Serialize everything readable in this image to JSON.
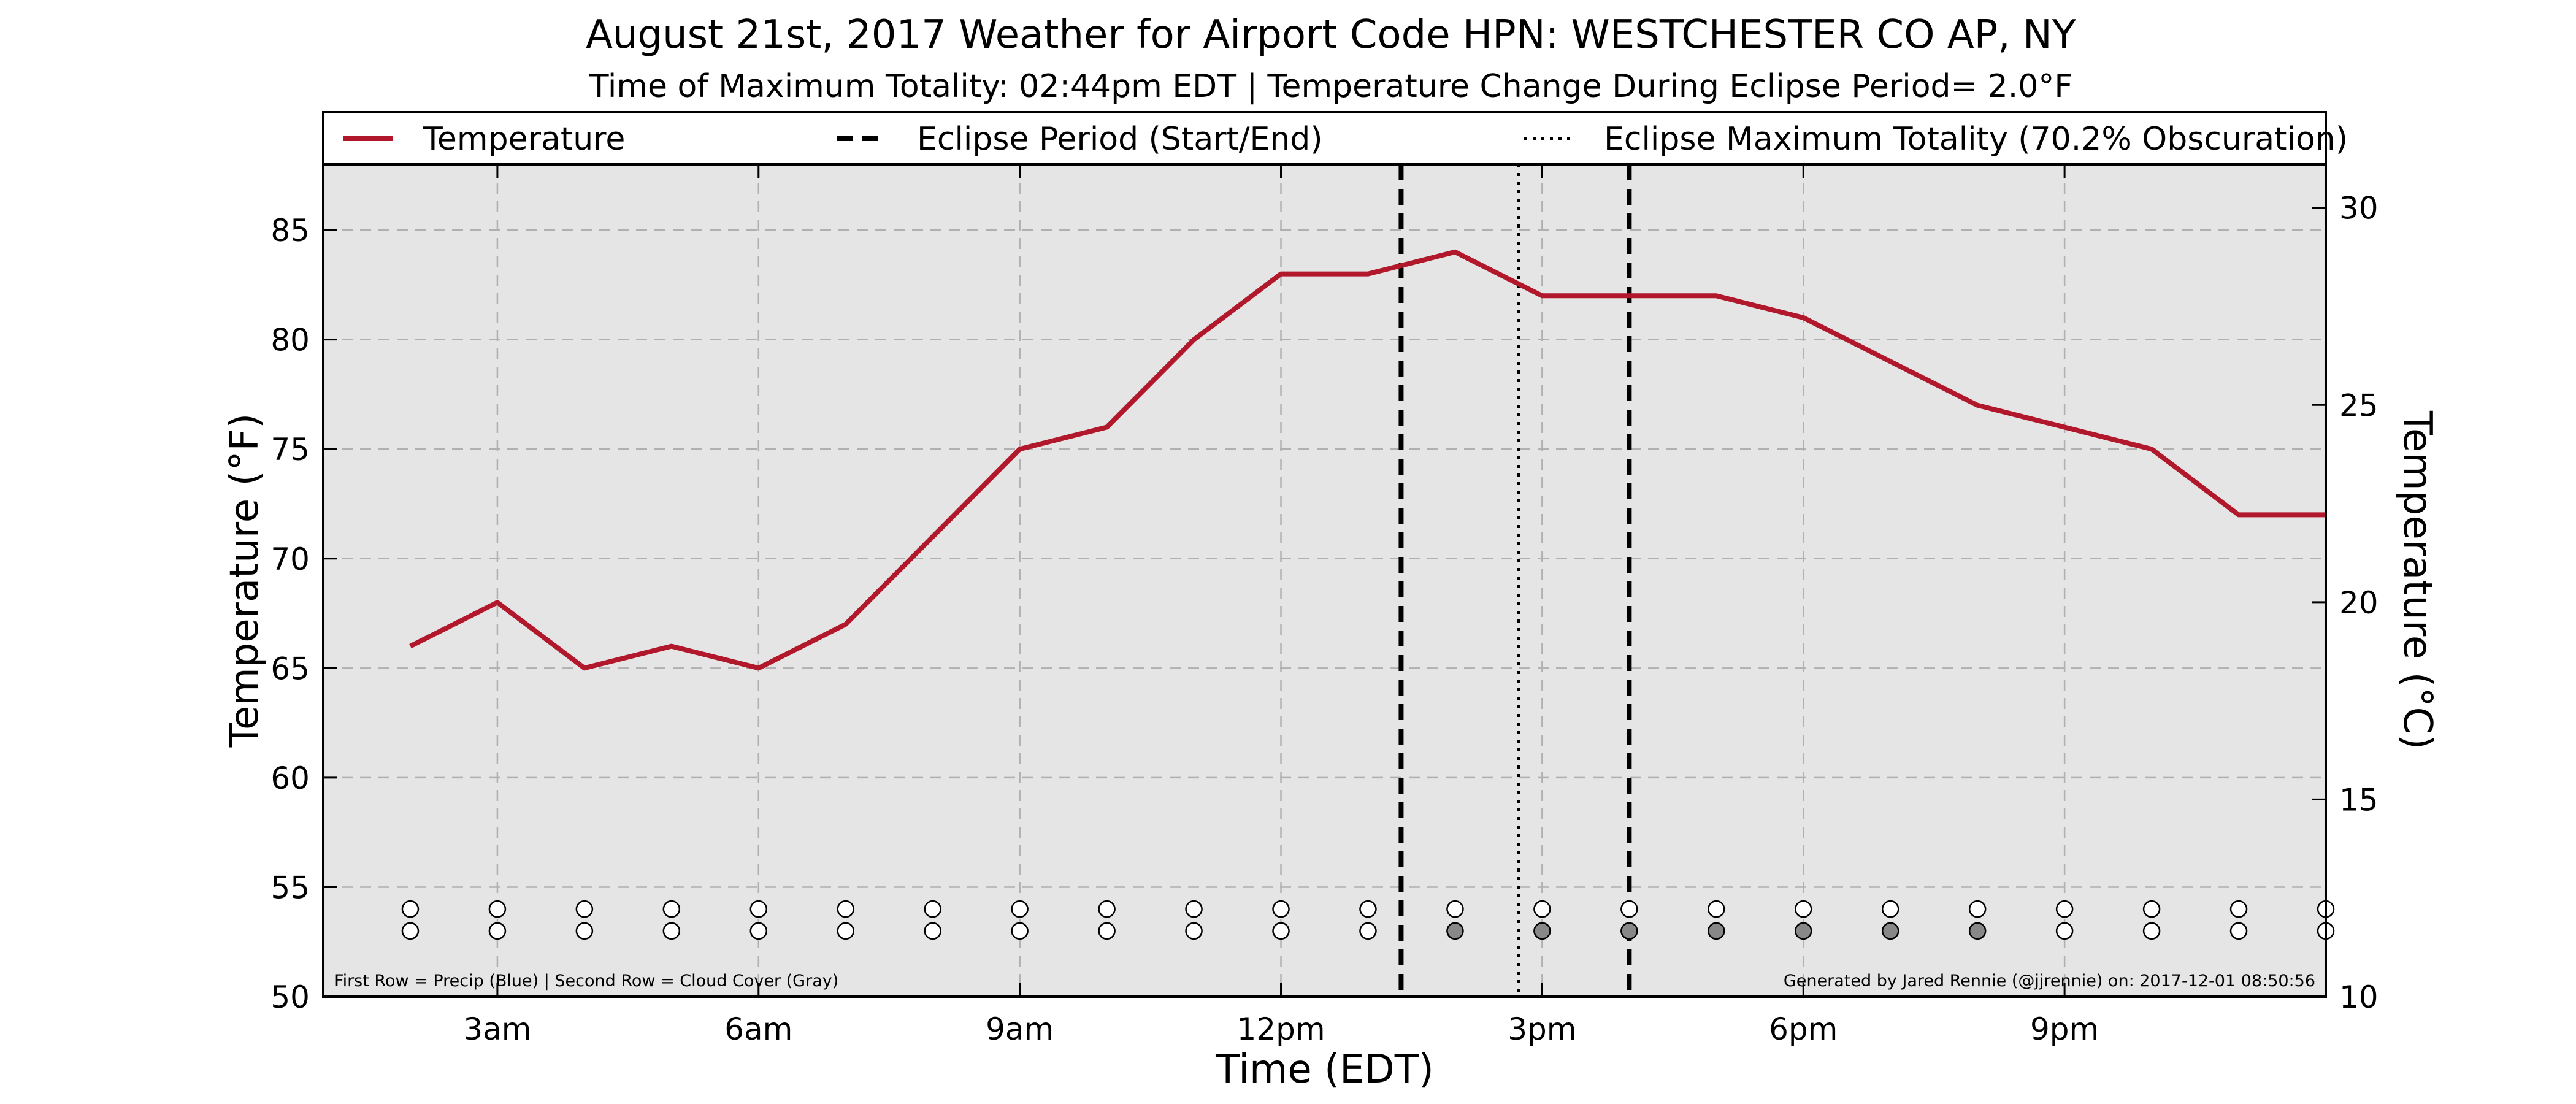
{
  "chart_data": {
    "type": "line",
    "title": "August 21st, 2017 Weather for Airport Code HPN: WESTCHESTER CO AP, NY",
    "subtitle": "Time of Maximum Totality: 02:44pm EDT | Temperature Change During Eclipse Period= 2.0°F",
    "xlabel": "Time (EDT)",
    "ylabel": "Temperature (°F)",
    "ylabel_right": "Temperature (°C)",
    "xlim": [
      1,
      24
    ],
    "ylim": [
      50,
      88
    ],
    "ylim_right": [
      10,
      31.1
    ],
    "grid": true,
    "x_ticks": [
      {
        "x": 3,
        "label": "3am"
      },
      {
        "x": 6,
        "label": "6am"
      },
      {
        "x": 9,
        "label": "9am"
      },
      {
        "x": 12,
        "label": "12pm"
      },
      {
        "x": 15,
        "label": "3pm"
      },
      {
        "x": 18,
        "label": "6pm"
      },
      {
        "x": 21,
        "label": "9pm"
      }
    ],
    "y_ticks": [
      50,
      55,
      60,
      65,
      70,
      75,
      80,
      85
    ],
    "y_ticks_right": [
      10,
      15,
      20,
      25,
      30
    ],
    "legend": {
      "placement": "top",
      "entries": [
        {
          "label": "Temperature",
          "style": "solid",
          "color": "#b2182b"
        },
        {
          "label": "Eclipse Period (Start/End)",
          "style": "dashed",
          "color": "#000000"
        },
        {
          "label": "Eclipse Maximum Totality (70.2% Obscuration)",
          "style": "dotted",
          "color": "#000000"
        }
      ]
    },
    "series": [
      {
        "name": "Temperature",
        "color": "#b2182b",
        "x": [
          2,
          3,
          4,
          5,
          6,
          7,
          8,
          9,
          10,
          11,
          12,
          13,
          14,
          15,
          16,
          17,
          18,
          19,
          20,
          21,
          22,
          23,
          24
        ],
        "values": [
          66,
          68,
          65,
          66,
          65,
          67,
          71,
          75,
          76,
          80,
          83,
          83,
          84,
          82,
          82,
          82,
          81,
          79,
          77,
          76,
          75,
          72,
          72
        ]
      }
    ],
    "eclipse_start_x": 13.38,
    "eclipse_max_x": 14.73,
    "eclipse_end_x": 16.0,
    "markers": {
      "x": [
        2,
        3,
        4,
        5,
        6,
        7,
        8,
        9,
        10,
        11,
        12,
        13,
        14,
        15,
        16,
        17,
        18,
        19,
        20,
        21,
        22,
        23,
        24
      ],
      "precip_row_y": 54,
      "cloud_row_y": 53,
      "precip": [
        0,
        0,
        0,
        0,
        0,
        0,
        0,
        0,
        0,
        0,
        0,
        0,
        0,
        0,
        0,
        0,
        0,
        0,
        0,
        0,
        0,
        0,
        0
      ],
      "cloud_cover": [
        0,
        0,
        0,
        0,
        0,
        0,
        0,
        0,
        0,
        0,
        0,
        0,
        1,
        1,
        1,
        1,
        1,
        1,
        1,
        0,
        0,
        0,
        0
      ],
      "empty_color": "#ffffff",
      "cloud_color": "#888888"
    },
    "notes": {
      "left": "First Row = Precip (Blue) | Second Row = Cloud Cover (Gray)",
      "right": "Generated by Jared Rennie (@jjrennie) on: 2017-12-01 08:50:56"
    },
    "colors": {
      "plot_background": "#e5e5e5",
      "temperature_line": "#b2182b",
      "grid": "#b0b0b0"
    }
  }
}
